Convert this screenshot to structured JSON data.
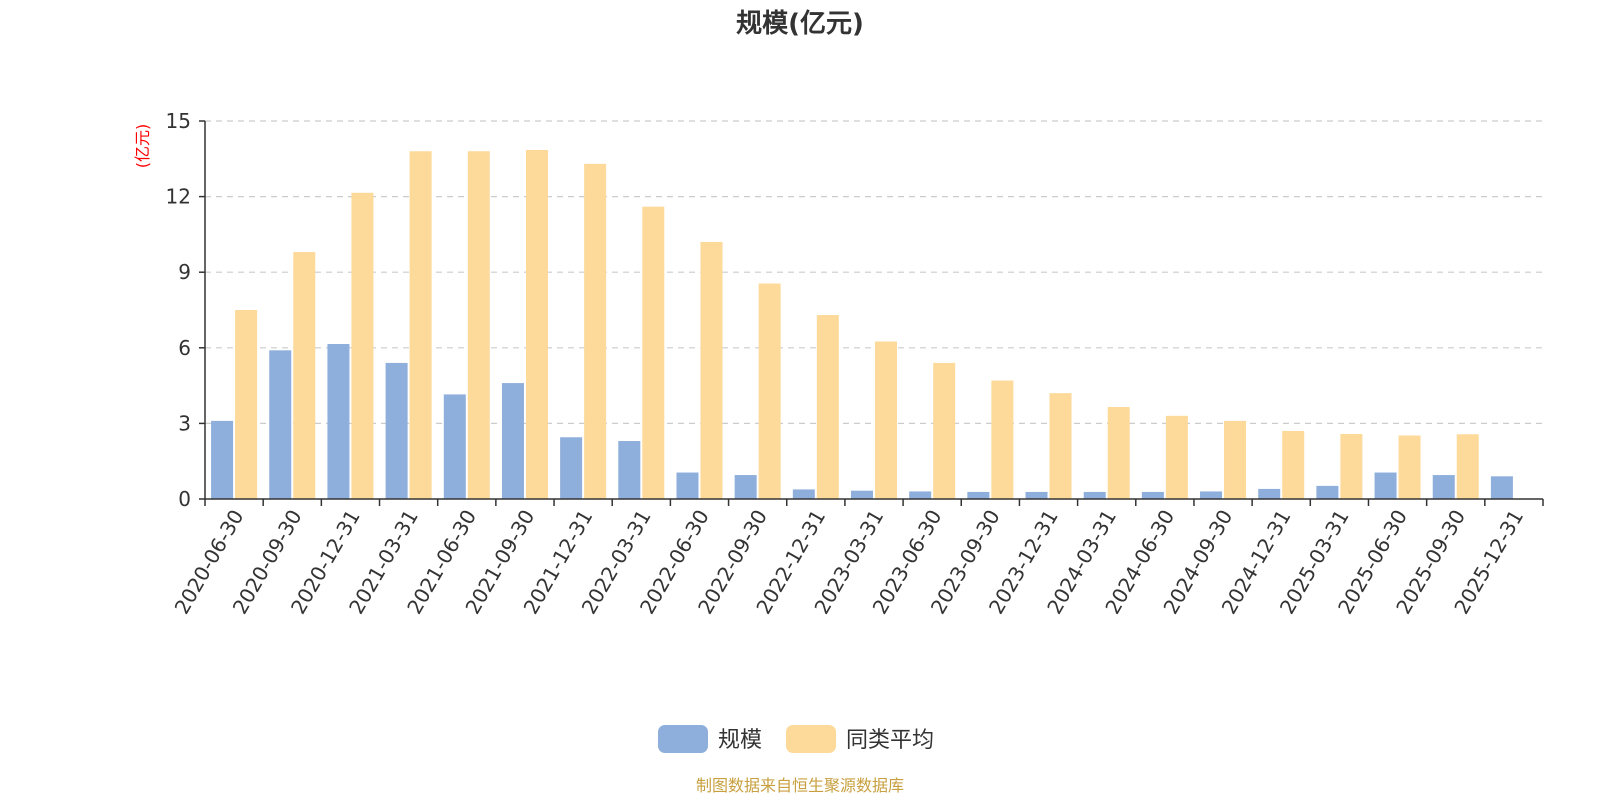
{
  "chart_data": {
    "type": "bar",
    "title": "规模(亿元)",
    "ylabel": "(亿元)",
    "ylim": [
      0,
      15
    ],
    "yticks": [
      0,
      3,
      6,
      9,
      12,
      15
    ],
    "grid": true,
    "legend_position": "bottom-center",
    "categories": [
      "2020-06-30",
      "2020-09-30",
      "2020-12-31",
      "2021-03-31",
      "2021-06-30",
      "2021-09-30",
      "2021-12-31",
      "2022-03-31",
      "2022-06-30",
      "2022-09-30",
      "2022-12-31",
      "2023-03-31",
      "2023-06-30",
      "2023-09-30",
      "2023-12-31",
      "2024-03-31",
      "2024-06-30",
      "2024-09-30",
      "2024-12-31",
      "2025-03-31",
      "2025-06-30",
      "2025-09-30",
      "2025-12-31"
    ],
    "series": [
      {
        "name": "规模",
        "color": "#8eaedc",
        "values": [
          3.1,
          5.9,
          6.15,
          5.4,
          4.15,
          4.6,
          2.45,
          2.3,
          1.05,
          0.95,
          0.38,
          0.33,
          0.3,
          0.28,
          0.28,
          0.28,
          0.28,
          0.3,
          0.4,
          0.52,
          1.05,
          0.95,
          0.9
        ]
      },
      {
        "name": "同类平均",
        "color": "#fdd99a",
        "values": [
          7.5,
          9.8,
          12.15,
          13.8,
          13.8,
          13.85,
          13.3,
          11.6,
          10.2,
          8.55,
          7.3,
          6.25,
          5.4,
          4.7,
          4.2,
          3.65,
          3.3,
          3.1,
          2.7,
          2.58,
          2.52,
          2.57,
          null
        ]
      }
    ]
  },
  "colors": {
    "unit_label": "#ff0000",
    "source_text": "#c8a040",
    "axis": "#333333",
    "grid": "#cccccc"
  },
  "footer": {
    "source": "制图数据来自恒生聚源数据库"
  }
}
